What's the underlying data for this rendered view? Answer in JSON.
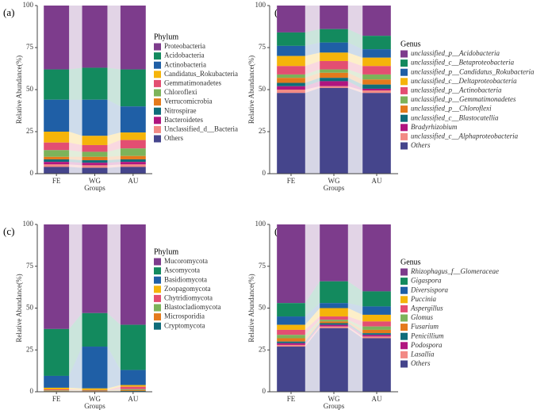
{
  "chart_data": [
    {
      "type": "bar",
      "stacked": true,
      "panel_label": "(a)",
      "legend_title": "Phylum",
      "legend_italic": false,
      "x_label": "Groups",
      "y_label": "Relative Abundance(%)",
      "categories": [
        "FE",
        "WG",
        "AU"
      ],
      "ylim": [
        0,
        100
      ],
      "yticks": [
        0,
        25,
        50,
        75,
        100
      ],
      "series": [
        {
          "name": "Proteobacteria",
          "color": "#7d3c8c",
          "values": [
            38,
            37,
            38
          ]
        },
        {
          "name": "Acidobacteria",
          "color": "#138a5e",
          "values": [
            18,
            19,
            22
          ]
        },
        {
          "name": "Actinobacteria",
          "color": "#1f5fa6",
          "values": [
            19,
            21.5,
            15.5
          ]
        },
        {
          "name": "Candidatus_Rokubacteria",
          "color": "#f5b40a",
          "values": [
            6.5,
            5.5,
            4.5
          ]
        },
        {
          "name": "Gemmatimonadetes",
          "color": "#e34e72",
          "values": [
            4.5,
            4,
            5
          ]
        },
        {
          "name": "Chloroflexi",
          "color": "#7cb35a",
          "values": [
            4,
            3,
            4.5
          ]
        },
        {
          "name": "Verrucomicrobia",
          "color": "#e47a1c",
          "values": [
            1.5,
            2,
            2
          ]
        },
        {
          "name": "Nitrospirae",
          "color": "#0f6c7a",
          "values": [
            1.5,
            1.5,
            1.5
          ]
        },
        {
          "name": "Bacteroidetes",
          "color": "#b0157f",
          "values": [
            1.5,
            1.5,
            1.5
          ]
        },
        {
          "name": "Unclassified_d__Bacteria",
          "color": "#f28a85",
          "values": [
            1.5,
            1.5,
            1.5
          ]
        },
        {
          "name": "Others",
          "color": "#45458c",
          "values": [
            4,
            3.5,
            4
          ]
        }
      ]
    },
    {
      "type": "bar",
      "stacked": true,
      "panel_label": "(b)",
      "legend_title": "Genus",
      "legend_italic": true,
      "x_label": "Groups",
      "y_label": "Relative Abundance(%)",
      "categories": [
        "FE",
        "WG",
        "AU"
      ],
      "ylim": [
        0,
        100
      ],
      "yticks": [
        0,
        25,
        50,
        75,
        100
      ],
      "series": [
        {
          "name": "unclassified_p__Acidobacteria",
          "color": "#7d3c8c",
          "values": [
            16,
            14,
            18
          ]
        },
        {
          "name": "unclassified_c__Betaproteobacteria",
          "color": "#138a5e",
          "values": [
            8,
            8,
            8
          ]
        },
        {
          "name": "unclassified_p__Candidatus_Rokubacteria",
          "color": "#1f5fa6",
          "values": [
            6,
            6,
            5
          ]
        },
        {
          "name": "unclassified_c__Deltaproteobacteria",
          "color": "#f5b40a",
          "values": [
            6,
            5,
            5
          ]
        },
        {
          "name": "unclassified_p__Actinobacteria",
          "color": "#e34e72",
          "values": [
            5,
            5,
            5
          ]
        },
        {
          "name": "unclassified_p__Gemmatimonadetes",
          "color": "#7cb35a",
          "values": [
            2,
            2,
            3
          ]
        },
        {
          "name": "unclassified_p__Chloroflexi",
          "color": "#e47a1c",
          "values": [
            3,
            3,
            3
          ]
        },
        {
          "name": "unclassified_c__Blastocatellia",
          "color": "#0f6c7a",
          "values": [
            2,
            2,
            2.5
          ]
        },
        {
          "name": "Bradyrhizobium",
          "color": "#b0157f",
          "values": [
            2,
            3,
            1
          ]
        },
        {
          "name": "unclassified_c__Alphaproteobacteria",
          "color": "#f28a85",
          "values": [
            2,
            1,
            1.5
          ]
        },
        {
          "name": "Others",
          "color": "#45458c",
          "values": [
            48,
            51,
            48
          ]
        }
      ]
    },
    {
      "type": "bar",
      "stacked": true,
      "panel_label": "(c)",
      "legend_title": "Phylum",
      "legend_italic": false,
      "x_label": "Groups",
      "y_label": "Relative Abundance(%)",
      "categories": [
        "FE",
        "WG",
        "AU"
      ],
      "ylim": [
        0,
        100
      ],
      "yticks": [
        0,
        25,
        50,
        75,
        100
      ],
      "series": [
        {
          "name": "Mucoromycota",
          "color": "#7d3c8c",
          "values": [
            62.5,
            53,
            60
          ]
        },
        {
          "name": "Ascomycota",
          "color": "#138a5e",
          "values": [
            28,
            20,
            27
          ]
        },
        {
          "name": "Basidiomycota",
          "color": "#1f5fa6",
          "values": [
            7.1,
            25,
            9
          ]
        },
        {
          "name": "Zoopagomycota",
          "color": "#f5b40a",
          "values": [
            1,
            1,
            1
          ]
        },
        {
          "name": "Chytridiomycota",
          "color": "#e34e72",
          "values": [
            0.5,
            0.3,
            1.5
          ]
        },
        {
          "name": "Blastocladiomycota",
          "color": "#7cb35a",
          "values": [
            0.3,
            0.3,
            0.5
          ]
        },
        {
          "name": "Microsporidia",
          "color": "#e47a1c",
          "values": [
            0.3,
            0.2,
            0.5
          ]
        },
        {
          "name": "Cryptomycota",
          "color": "#0f6c7a",
          "values": [
            0.3,
            0.2,
            0.5
          ]
        }
      ]
    },
    {
      "type": "bar",
      "stacked": true,
      "panel_label": "(d)",
      "legend_title": "Genus",
      "legend_italic": true,
      "x_label": "Groups",
      "y_label": "Relative Abundance(%)",
      "categories": [
        "FE",
        "WG",
        "AU"
      ],
      "ylim": [
        0,
        100
      ],
      "yticks": [
        0,
        25,
        50,
        75,
        100
      ],
      "series": [
        {
          "name": "Rhizophagus_f__Glomeraceae",
          "color": "#7d3c8c",
          "values": [
            47,
            34,
            40
          ]
        },
        {
          "name": "Gigaspora",
          "color": "#138a5e",
          "values": [
            8,
            13,
            9
          ]
        },
        {
          "name": "Diversispora",
          "color": "#1f5fa6",
          "values": [
            5,
            3,
            5
          ]
        },
        {
          "name": "Puccinia",
          "color": "#f5b40a",
          "values": [
            3,
            5,
            4
          ]
        },
        {
          "name": "Aspergillus",
          "color": "#e34e72",
          "values": [
            3,
            2,
            3
          ]
        },
        {
          "name": "Glomus",
          "color": "#7cb35a",
          "values": [
            2,
            1,
            2
          ]
        },
        {
          "name": "Fusarium",
          "color": "#e47a1c",
          "values": [
            2,
            1,
            2
          ]
        },
        {
          "name": "Penicillium",
          "color": "#0f6c7a",
          "values": [
            1,
            1,
            1
          ]
        },
        {
          "name": "Podospora",
          "color": "#b0157f",
          "values": [
            1,
            1,
            1
          ]
        },
        {
          "name": "Lasallia",
          "color": "#f28a85",
          "values": [
            1,
            1,
            1
          ]
        },
        {
          "name": "Others",
          "color": "#45458c",
          "values": [
            27,
            38,
            32
          ]
        }
      ]
    }
  ]
}
